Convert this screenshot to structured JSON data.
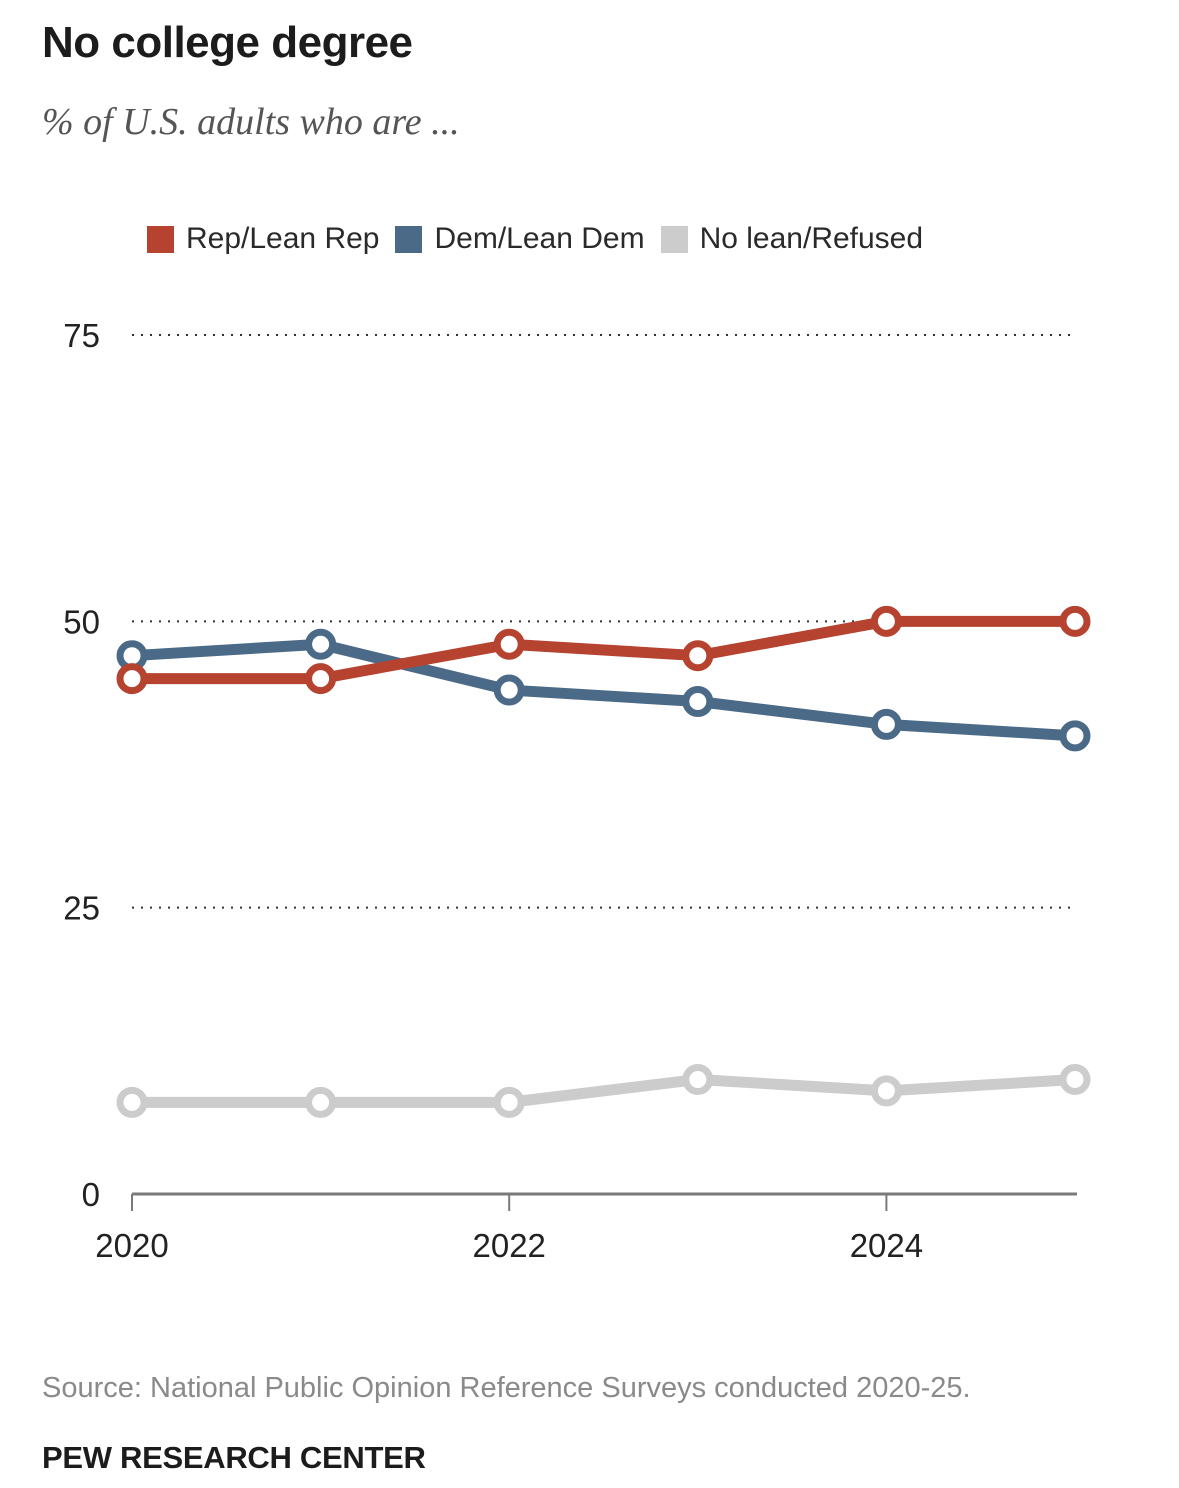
{
  "header": {
    "title": "No college degree",
    "subtitle": "% of U.S. adults who are ..."
  },
  "footer": {
    "source": "Source: National Public Opinion Reference Surveys conducted 2020-25.",
    "brand": "PEW RESEARCH CENTER"
  },
  "chart_data": {
    "type": "line",
    "title": "No college degree",
    "subtitle": "% of U.S. adults who are ...",
    "xlabel": "",
    "ylabel": "",
    "x": [
      2020,
      2021,
      2022,
      2023,
      2024,
      2025
    ],
    "x_tick_labels": [
      "2020",
      "2022",
      "2024"
    ],
    "x_tick_values": [
      2020,
      2022,
      2024
    ],
    "y_tick_labels": [
      "0",
      "25",
      "50",
      "75"
    ],
    "y_tick_values": [
      0,
      25,
      50,
      75
    ],
    "ylim": [
      0,
      75
    ],
    "xlim": [
      2020,
      2025
    ],
    "grid": true,
    "legend_position": "top",
    "series": [
      {
        "name": "Rep/Lean Rep",
        "color": "#b5432f",
        "values": [
          45,
          45,
          48,
          47,
          50,
          50
        ]
      },
      {
        "name": "Dem/Lean Dem",
        "color": "#4b6a87",
        "values": [
          47,
          48,
          44,
          43,
          41,
          40
        ]
      },
      {
        "name": "No lean/Refused",
        "color": "#cccccc",
        "values": [
          8,
          8,
          8,
          10,
          9,
          10
        ]
      }
    ]
  }
}
